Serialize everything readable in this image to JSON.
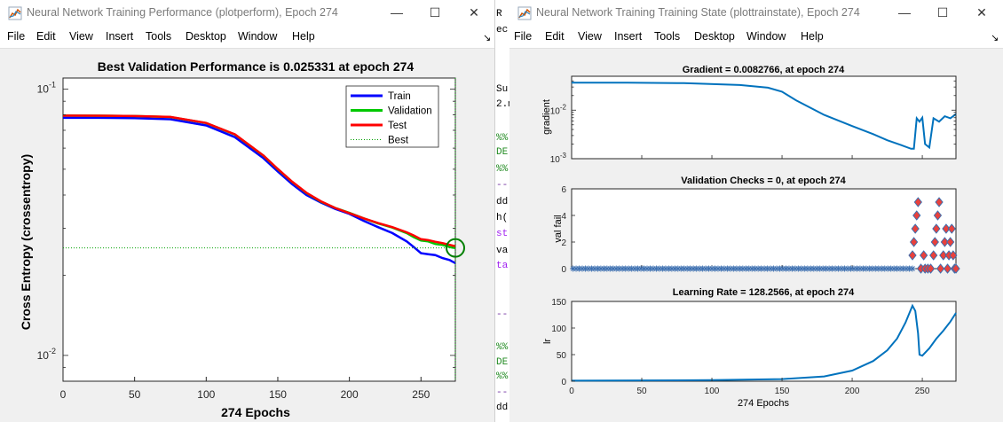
{
  "left_window": {
    "title": "Neural Network Training Performance (plotperform), Epoch 274",
    "menu": [
      "File",
      "Edit",
      "View",
      "Insert",
      "Tools",
      "Desktop",
      "Window",
      "Help"
    ],
    "dock_icon": "dock-arrow-icon",
    "chart_data": {
      "type": "line",
      "title": "Best Validation Performance is 0.025331 at epoch 274",
      "xlabel": "274 Epochs",
      "ylabel": "Cross Entropy  (crossentropy)",
      "xlim": [
        0,
        274
      ],
      "ylim": [
        0.008,
        0.11
      ],
      "yscale": "log",
      "x_ticks": [
        "0",
        "50",
        "100",
        "150",
        "200",
        "250"
      ],
      "y_tick_labels": [
        {
          "base": "10",
          "exp": "-1"
        },
        {
          "base": "10",
          "exp": "-2"
        }
      ],
      "best_epoch": 274,
      "best_value": 0.025331,
      "legend_position": "top-right",
      "series": [
        {
          "name": "Train",
          "color": "#0000ff",
          "x": [
            0,
            25,
            50,
            75,
            100,
            120,
            140,
            150,
            160,
            170,
            180,
            190,
            200,
            210,
            220,
            230,
            240,
            245,
            250,
            255,
            260,
            265,
            270,
            274
          ],
          "y": [
            0.078,
            0.078,
            0.0778,
            0.077,
            0.073,
            0.066,
            0.055,
            0.049,
            0.044,
            0.04,
            0.0375,
            0.0355,
            0.034,
            0.032,
            0.0303,
            0.0288,
            0.0268,
            0.0255,
            0.0242,
            0.024,
            0.0238,
            0.0232,
            0.0228,
            0.0222
          ]
        },
        {
          "name": "Validation",
          "color": "#00c800",
          "x": [
            0,
            25,
            50,
            75,
            100,
            120,
            140,
            150,
            160,
            170,
            180,
            190,
            200,
            210,
            220,
            230,
            240,
            245,
            250,
            255,
            260,
            265,
            270,
            274
          ],
          "y": [
            0.0795,
            0.0794,
            0.0792,
            0.0785,
            0.0745,
            0.0675,
            0.0562,
            0.05,
            0.0448,
            0.0407,
            0.0378,
            0.0358,
            0.0343,
            0.0327,
            0.0313,
            0.0302,
            0.0288,
            0.0278,
            0.027,
            0.0268,
            0.0262,
            0.026,
            0.0255,
            0.0253
          ]
        },
        {
          "name": "Test",
          "color": "#ff0000",
          "x": [
            0,
            25,
            50,
            75,
            100,
            120,
            140,
            150,
            160,
            170,
            180,
            190,
            200,
            210,
            220,
            230,
            240,
            245,
            250,
            255,
            260,
            265,
            270,
            274
          ],
          "y": [
            0.0795,
            0.0794,
            0.0792,
            0.0786,
            0.0746,
            0.0676,
            0.0563,
            0.0501,
            0.0449,
            0.0408,
            0.0379,
            0.0358,
            0.0342,
            0.0327,
            0.0314,
            0.0303,
            0.029,
            0.0282,
            0.0273,
            0.0271,
            0.0267,
            0.0264,
            0.026,
            0.0257
          ]
        },
        {
          "name": "Best",
          "color": "#00a000",
          "style": "dotted",
          "value": 0.025331
        }
      ]
    }
  },
  "right_window": {
    "title": "Neural Network Training Training State (plottrainstate), Epoch 274",
    "menu": [
      "File",
      "Edit",
      "View",
      "Insert",
      "Tools",
      "Desktop",
      "Window",
      "Help"
    ],
    "dock_icon": "dock-arrow-icon",
    "chart_data": [
      {
        "type": "line",
        "title": "Gradient = 0.0082766, at epoch 274",
        "ylabel": "gradient",
        "yscale": "log",
        "ylim": [
          0.001,
          0.05
        ],
        "xlim": [
          0,
          274
        ],
        "y_tick_labels": [
          {
            "base": "10",
            "exp": "-2"
          },
          {
            "base": "10",
            "exp": "-3"
          }
        ],
        "x": [
          0,
          40,
          80,
          120,
          140,
          150,
          160,
          180,
          200,
          215,
          225,
          235,
          242,
          244,
          246,
          248,
          250,
          252,
          255,
          258,
          262,
          266,
          270,
          274
        ],
        "y": [
          0.037,
          0.0368,
          0.036,
          0.033,
          0.029,
          0.024,
          0.016,
          0.008,
          0.0047,
          0.0032,
          0.0024,
          0.0019,
          0.0016,
          0.0016,
          0.0068,
          0.0058,
          0.007,
          0.002,
          0.0017,
          0.0068,
          0.0058,
          0.0075,
          0.0068,
          0.0083
        ],
        "color": "#0072bd"
      },
      {
        "type": "scatter",
        "title": "Validation Checks = 0, at epoch 274",
        "ylabel": "val fail",
        "ylim": [
          0,
          6
        ],
        "xlim": [
          0,
          274
        ],
        "y_ticks": [
          "0",
          "2",
          "4",
          "6"
        ],
        "baseline_value": 0,
        "baseline_until": 243,
        "points": [
          [
            243,
            1
          ],
          [
            244,
            2
          ],
          [
            245,
            3
          ],
          [
            246,
            4
          ],
          [
            247,
            5
          ],
          [
            249,
            0
          ],
          [
            251,
            1
          ],
          [
            252,
            0
          ],
          [
            254,
            0
          ],
          [
            256,
            0
          ],
          [
            258,
            1
          ],
          [
            259,
            2
          ],
          [
            260,
            3
          ],
          [
            261,
            4
          ],
          [
            262,
            5
          ],
          [
            263,
            0
          ],
          [
            265,
            1
          ],
          [
            266,
            2
          ],
          [
            267,
            3
          ],
          [
            268,
            0
          ],
          [
            269,
            1
          ],
          [
            270,
            2
          ],
          [
            271,
            3
          ],
          [
            272,
            1
          ],
          [
            273,
            0
          ],
          [
            274,
            0
          ]
        ],
        "marker_fill": "#e8413c",
        "marker_edge": "#3c6fb0"
      },
      {
        "type": "line",
        "title": "Learning Rate = 128.2566, at epoch 274",
        "ylabel": "lr",
        "xlabel": "274 Epochs",
        "ylim": [
          0,
          150
        ],
        "xlim": [
          0,
          274
        ],
        "y_ticks": [
          "0",
          "50",
          "100",
          "150"
        ],
        "x_ticks": [
          "0",
          "50",
          "100",
          "150",
          "200",
          "250"
        ],
        "x": [
          0,
          100,
          150,
          180,
          200,
          215,
          225,
          232,
          238,
          243,
          245,
          247,
          248,
          250,
          255,
          260,
          265,
          270,
          274
        ],
        "y": [
          1,
          2,
          4,
          9,
          20,
          38,
          58,
          80,
          110,
          142,
          132,
          90,
          50,
          48,
          62,
          80,
          95,
          112,
          128.2566
        ],
        "color": "#0072bd"
      }
    ]
  },
  "editor": {
    "lines": [
      {
        "text": "R",
        "color": "#000"
      },
      {
        "text": "ec",
        "color": "#000"
      },
      {
        "text": "Su",
        "color": "#000"
      },
      {
        "text": "2.m",
        "color": "#000"
      },
      {
        "text": "%%",
        "color": "#228b22"
      },
      {
        "text": "DE",
        "color": "#228b22"
      },
      {
        "text": "%%",
        "color": "#228b22"
      },
      {
        "text": "--",
        "color": "#7030a0"
      },
      {
        "text": "dd",
        "color": "#000"
      },
      {
        "text": "h(",
        "color": "#000"
      },
      {
        "text": "st",
        "color": "#a020f0"
      },
      {
        "text": "va",
        "color": "#000"
      },
      {
        "text": "ta",
        "color": "#a020f0"
      },
      {
        "text": "--",
        "color": "#7030a0"
      },
      {
        "text": "%%",
        "color": "#228b22"
      },
      {
        "text": "DE",
        "color": "#228b22"
      },
      {
        "text": "%%",
        "color": "#228b22"
      },
      {
        "text": "--",
        "color": "#7030a0"
      },
      {
        "text": "dd",
        "color": "#000"
      }
    ]
  }
}
